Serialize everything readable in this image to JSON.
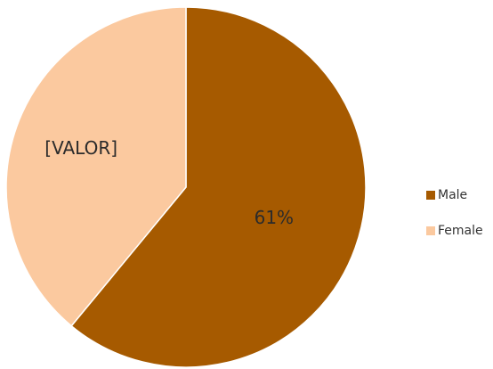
{
  "chart_data": {
    "type": "pie",
    "categories": [
      "Male",
      "Female"
    ],
    "values": [
      61,
      39
    ],
    "data_labels": [
      "61%",
      "[VALOR]"
    ],
    "colors": [
      "#a65a00",
      "#fbc99f"
    ],
    "legend_position": "right",
    "title": ""
  }
}
